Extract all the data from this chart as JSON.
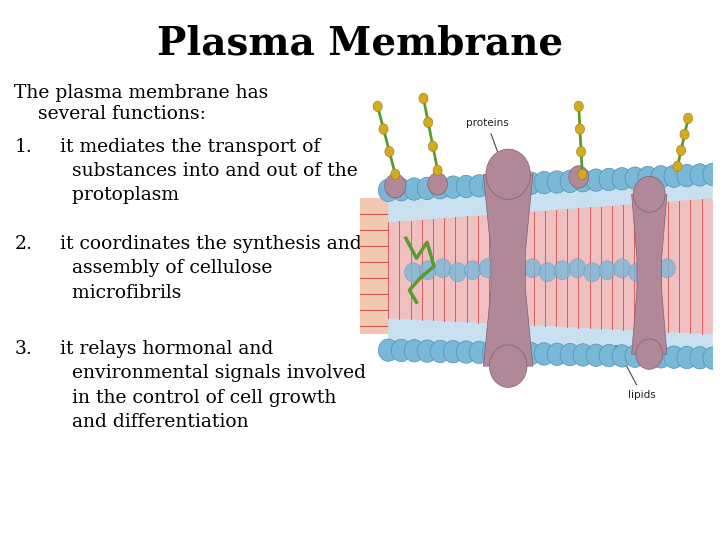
{
  "title": "Plasma Membrane",
  "title_fontsize": 28,
  "title_fontweight": "bold",
  "title_fontfamily": "serif",
  "background_color": "#ffffff",
  "text_color": "#000000",
  "text_fontsize": 13.5,
  "text_fontfamily": "serif",
  "intro_line1": "The plasma membrane has",
  "intro_line2": "    several functions:",
  "items": [
    " it mediates the transport of\n   substances into and out of the\n   protoplasm",
    " it coordinates the synthesis and\n   assembly of cellulose\n   microfibrils",
    " it relays hormonal and\n   environmental signals involved\n   in the control of cell growth\n   and differentiation"
  ],
  "fig_width": 7.2,
  "fig_height": 5.4,
  "dpi": 100
}
